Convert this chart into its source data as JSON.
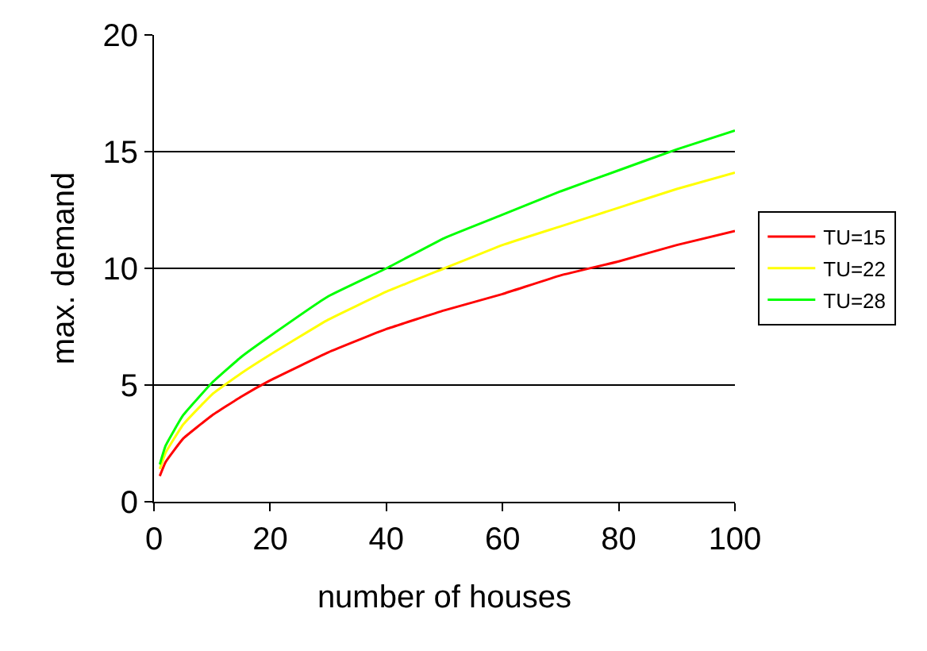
{
  "chart_data": {
    "type": "line",
    "xlabel": "number of houses",
    "ylabel": "max. demand",
    "x": [
      1,
      2,
      5,
      10,
      15,
      20,
      30,
      40,
      50,
      60,
      70,
      80,
      90,
      100
    ],
    "series": [
      {
        "name": "TU=15",
        "color": "#ff0000",
        "values": [
          1.1,
          1.7,
          2.7,
          3.7,
          4.5,
          5.2,
          6.4,
          7.4,
          8.2,
          8.9,
          9.7,
          10.3,
          11.0,
          11.6
        ]
      },
      {
        "name": "TU=22",
        "color": "#ffff00",
        "values": [
          1.4,
          2.1,
          3.3,
          4.6,
          5.5,
          6.3,
          7.8,
          9.0,
          10.0,
          11.0,
          11.8,
          12.6,
          13.4,
          14.1
        ]
      },
      {
        "name": "TU=28",
        "color": "#00ff00",
        "values": [
          1.6,
          2.4,
          3.7,
          5.1,
          6.2,
          7.1,
          8.8,
          10.0,
          11.3,
          12.3,
          13.3,
          14.2,
          15.1,
          15.9
        ]
      }
    ],
    "xlim": [
      0,
      100
    ],
    "xticks": [
      0,
      20,
      40,
      60,
      80,
      100
    ],
    "ylim": [
      0,
      20
    ],
    "yticks": [
      0,
      5,
      10,
      15,
      20
    ],
    "grid": "y",
    "legend": "right",
    "marker": "none",
    "line_style": "solid"
  }
}
